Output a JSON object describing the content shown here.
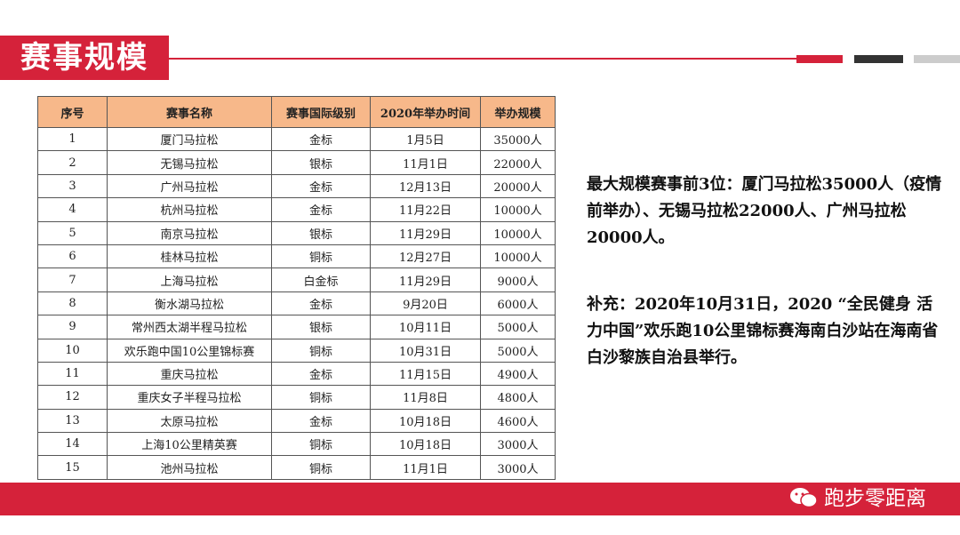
{
  "header": {
    "title": "赛事规模"
  },
  "table": {
    "columns": [
      "序号",
      "赛事名称",
      "赛事国际级别",
      "2020年举办时间",
      "举办规模"
    ],
    "rows": [
      [
        "1",
        "厦门马拉松",
        "金标",
        "1月5日",
        "35000人"
      ],
      [
        "2",
        "无锡马拉松",
        "银标",
        "11月1日",
        "22000人"
      ],
      [
        "3",
        "广州马拉松",
        "金标",
        "12月13日",
        "20000人"
      ],
      [
        "4",
        "杭州马拉松",
        "金标",
        "11月22日",
        "10000人"
      ],
      [
        "5",
        "南京马拉松",
        "银标",
        "11月29日",
        "10000人"
      ],
      [
        "6",
        "桂林马拉松",
        "铜标",
        "12月27日",
        "10000人"
      ],
      [
        "7",
        "上海马拉松",
        "白金标",
        "11月29日",
        "9000人"
      ],
      [
        "8",
        "衡水湖马拉松",
        "金标",
        "9月20日",
        "6000人"
      ],
      [
        "9",
        "常州西太湖半程马拉松",
        "银标",
        "10月11日",
        "5000人"
      ],
      [
        "10",
        "欢乐跑中国10公里锦标赛",
        "铜标",
        "10月31日",
        "5000人"
      ],
      [
        "11",
        "重庆马拉松",
        "金标",
        "11月15日",
        "4900人"
      ],
      [
        "12",
        "重庆女子半程马拉松",
        "铜标",
        "11月8日",
        "4800人"
      ],
      [
        "13",
        "太原马拉松",
        "金标",
        "10月18日",
        "4600人"
      ],
      [
        "14",
        "上海10公里精英赛",
        "铜标",
        "10月18日",
        "3000人"
      ],
      [
        "15",
        "池州马拉松",
        "铜标",
        "11月1日",
        "3000人"
      ]
    ]
  },
  "notes": [
    "最大规模赛事前3位：厦门马拉松35000人（疫情前举办）、无锡马拉松22000人、广州马拉松20000人。",
    "补充：2020年10月31日，2020 “全民健身 活力中国”欢乐跑10公里锦标赛海南白沙站在海南省白沙黎族自治县举行。"
  ],
  "footer": {
    "brand": "跑步零距离"
  }
}
